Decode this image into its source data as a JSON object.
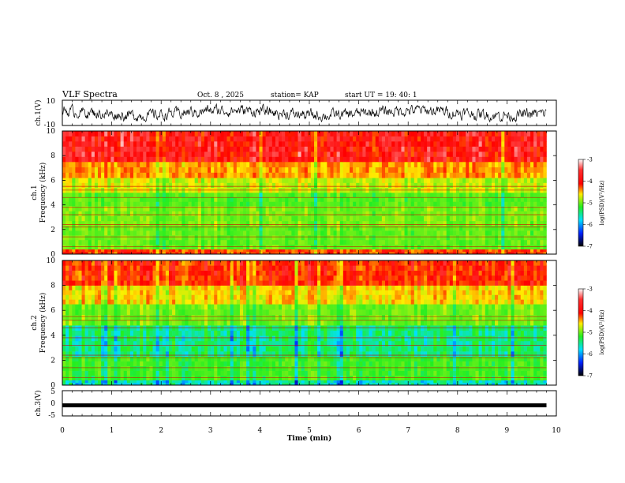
{
  "header": {
    "title": "VLF Spectra",
    "date": "Oct. 8 , 2025",
    "station": "station= KAP",
    "start_ut": "start UT = 19: 40: 1"
  },
  "chart_data": [
    {
      "type": "line",
      "id": "ch1-waveform",
      "ylabel": "ch.1(V)",
      "ylim": [
        -10,
        10
      ],
      "ytick_labels": [
        "10",
        "-10"
      ],
      "description": "noisy voltage trace fluctuating roughly between -5 and +5 V"
    },
    {
      "type": "heatmap",
      "id": "ch1-spectrogram",
      "ylabel_top": "ch.1",
      "ylabel": "Frequency (kHz)",
      "ylim": [
        0,
        10
      ],
      "ytick_labels": [
        "0",
        "2",
        "4",
        "6",
        "8",
        "10"
      ],
      "colorbar": {
        "label": "log(PSD)(V²/Hz)",
        "range": [
          -7,
          -3
        ],
        "tick_labels": [
          "-3",
          "-4",
          "-5",
          "-6",
          "-7"
        ]
      },
      "bands_khz": [
        {
          "from": 0,
          "to": 0.4,
          "level": -3.8
        },
        {
          "from": 0.4,
          "to": 2.3,
          "level": -5.0
        },
        {
          "from": 2.3,
          "to": 3.9,
          "level": -4.9
        },
        {
          "from": 3.9,
          "to": 5.0,
          "level": -5.1
        },
        {
          "from": 5.0,
          "to": 6.2,
          "level": -4.6
        },
        {
          "from": 6.2,
          "to": 7.5,
          "level": -4.1
        },
        {
          "from": 7.5,
          "to": 10,
          "level": -3.5
        }
      ]
    },
    {
      "type": "heatmap",
      "id": "ch2-spectrogram",
      "ylabel_top": "ch.2",
      "ylabel": "Frequency (kHz)",
      "ylim": [
        0,
        10
      ],
      "ytick_labels": [
        "0",
        "2",
        "4",
        "6",
        "8",
        "10"
      ],
      "colorbar": {
        "label": "log(PSD)(V²/Hz)",
        "range": [
          -7,
          -3
        ],
        "tick_labels": [
          "-3",
          "-4",
          "-5",
          "-6",
          "-7"
        ]
      },
      "bands_khz": [
        {
          "from": 0,
          "to": 0.4,
          "level": -5.8
        },
        {
          "from": 0.4,
          "to": 2.3,
          "level": -5.2
        },
        {
          "from": 2.3,
          "to": 4.8,
          "level": -5.6
        },
        {
          "from": 4.8,
          "to": 6.5,
          "level": -4.9
        },
        {
          "from": 6.5,
          "to": 8.0,
          "level": -4.3
        },
        {
          "from": 8.0,
          "to": 10,
          "level": -3.7
        }
      ]
    },
    {
      "type": "line",
      "id": "ch3-waveform",
      "ylabel": "ch.3(V)",
      "ylim": [
        -5,
        5
      ],
      "ytick_labels": [
        "5",
        "0",
        "-5"
      ],
      "level_v": -0.8
    }
  ],
  "x_axis": {
    "label": "Time (min)",
    "range": [
      0,
      10
    ],
    "tick_labels": [
      "0",
      "1",
      "2",
      "3",
      "4",
      "5",
      "6",
      "7",
      "8",
      "9",
      "10"
    ],
    "data_end_min": 9.8
  }
}
